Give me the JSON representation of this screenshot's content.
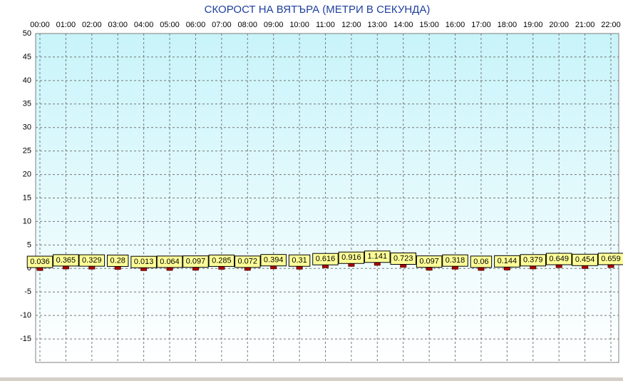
{
  "chart_data": {
    "type": "line-markers",
    "title": "СКОРОСТ НА ВЯТЪРА (МЕТРИ В СЕКУНДА)",
    "categories": [
      "00:00",
      "01:00",
      "02:00",
      "03:00",
      "04:00",
      "05:00",
      "06:00",
      "07:00",
      "08:00",
      "09:00",
      "10:00",
      "11:00",
      "12:00",
      "13:00",
      "14:00",
      "15:00",
      "16:00",
      "17:00",
      "18:00",
      "19:00",
      "20:00",
      "21:00",
      "22:00"
    ],
    "values": [
      0.036,
      0.365,
      0.329,
      0.28,
      0.013,
      0.064,
      0.097,
      0.285,
      0.072,
      0.394,
      0.31,
      0.616,
      0.916,
      1.141,
      0.723,
      0.097,
      0.318,
      0.06,
      0.144,
      0.379,
      0.649,
      0.454,
      0.659
    ],
    "color": "#b00000",
    "ylim": [
      -20,
      50
    ],
    "yticks": [
      -15,
      -10,
      -5,
      0,
      5,
      10,
      15,
      20,
      25,
      30,
      35,
      40,
      45,
      50
    ],
    "grid": true
  }
}
